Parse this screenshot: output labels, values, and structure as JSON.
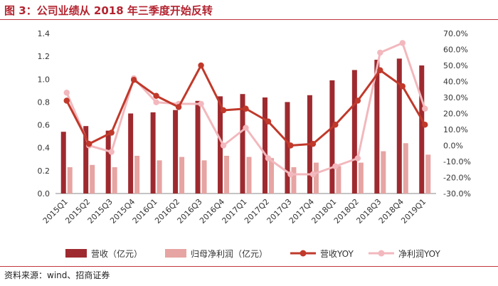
{
  "title": "图 3：公司业绩从 2018 年三季度开始反转",
  "source": "资料来源：wind、招商证券",
  "colors": {
    "revenue": "#9e2a2f",
    "profit": "#e6a4a2",
    "revenue_yoy": "#c0392b",
    "profit_yoy": "#f2b8bd",
    "title": "#b32430"
  },
  "chart_data": {
    "type": "bar",
    "categories": [
      "2015Q1",
      "2015Q2",
      "2015Q3",
      "2015Q4",
      "2016Q1",
      "2016Q2",
      "2016Q3",
      "2016Q4",
      "2017Q1",
      "2017Q2",
      "2017Q3",
      "2017Q4",
      "2018Q1",
      "2018Q2",
      "2018Q3",
      "2018Q4",
      "2019Q1"
    ],
    "ylim": [
      0,
      1.4
    ],
    "yticks": [
      "0.0",
      "0.2",
      "0.4",
      "0.6",
      "0.8",
      "1.0",
      "1.2",
      "1.4"
    ],
    "ylim_right": [
      -30,
      70
    ],
    "yticks_right": [
      "-30.0%",
      "-20.0%",
      "-10.0%",
      "0.0%",
      "10.0%",
      "20.0%",
      "30.0%",
      "40.0%",
      "50.0%",
      "60.0%",
      "70.0%"
    ],
    "series": [
      {
        "name": "营收（亿元）",
        "type": "bar",
        "axis": "left",
        "values": [
          0.54,
          0.59,
          0.55,
          0.7,
          0.71,
          0.73,
          0.81,
          0.85,
          0.87,
          0.84,
          0.8,
          0.86,
          0.99,
          1.08,
          1.17,
          1.18,
          1.12
        ]
      },
      {
        "name": "归母净利润（亿元）",
        "type": "bar",
        "axis": "left",
        "values": [
          0.23,
          0.25,
          0.23,
          0.33,
          0.29,
          0.32,
          0.29,
          0.33,
          0.32,
          0.31,
          0.23,
          0.27,
          0.24,
          0.27,
          0.37,
          0.44,
          0.34
        ]
      },
      {
        "name": "营收YOY",
        "type": "line",
        "axis": "right",
        "values": [
          28,
          1,
          8,
          41,
          31,
          24,
          50,
          22,
          23,
          15,
          0,
          1,
          13,
          28,
          47,
          37,
          13
        ]
      },
      {
        "name": "净利润YOY",
        "type": "line",
        "axis": "right",
        "values": [
          33,
          0,
          -4,
          42,
          27,
          26,
          26,
          0,
          11,
          -8,
          -18,
          -18,
          -13,
          -8,
          58,
          64,
          23
        ]
      }
    ],
    "legend": "bottom"
  }
}
